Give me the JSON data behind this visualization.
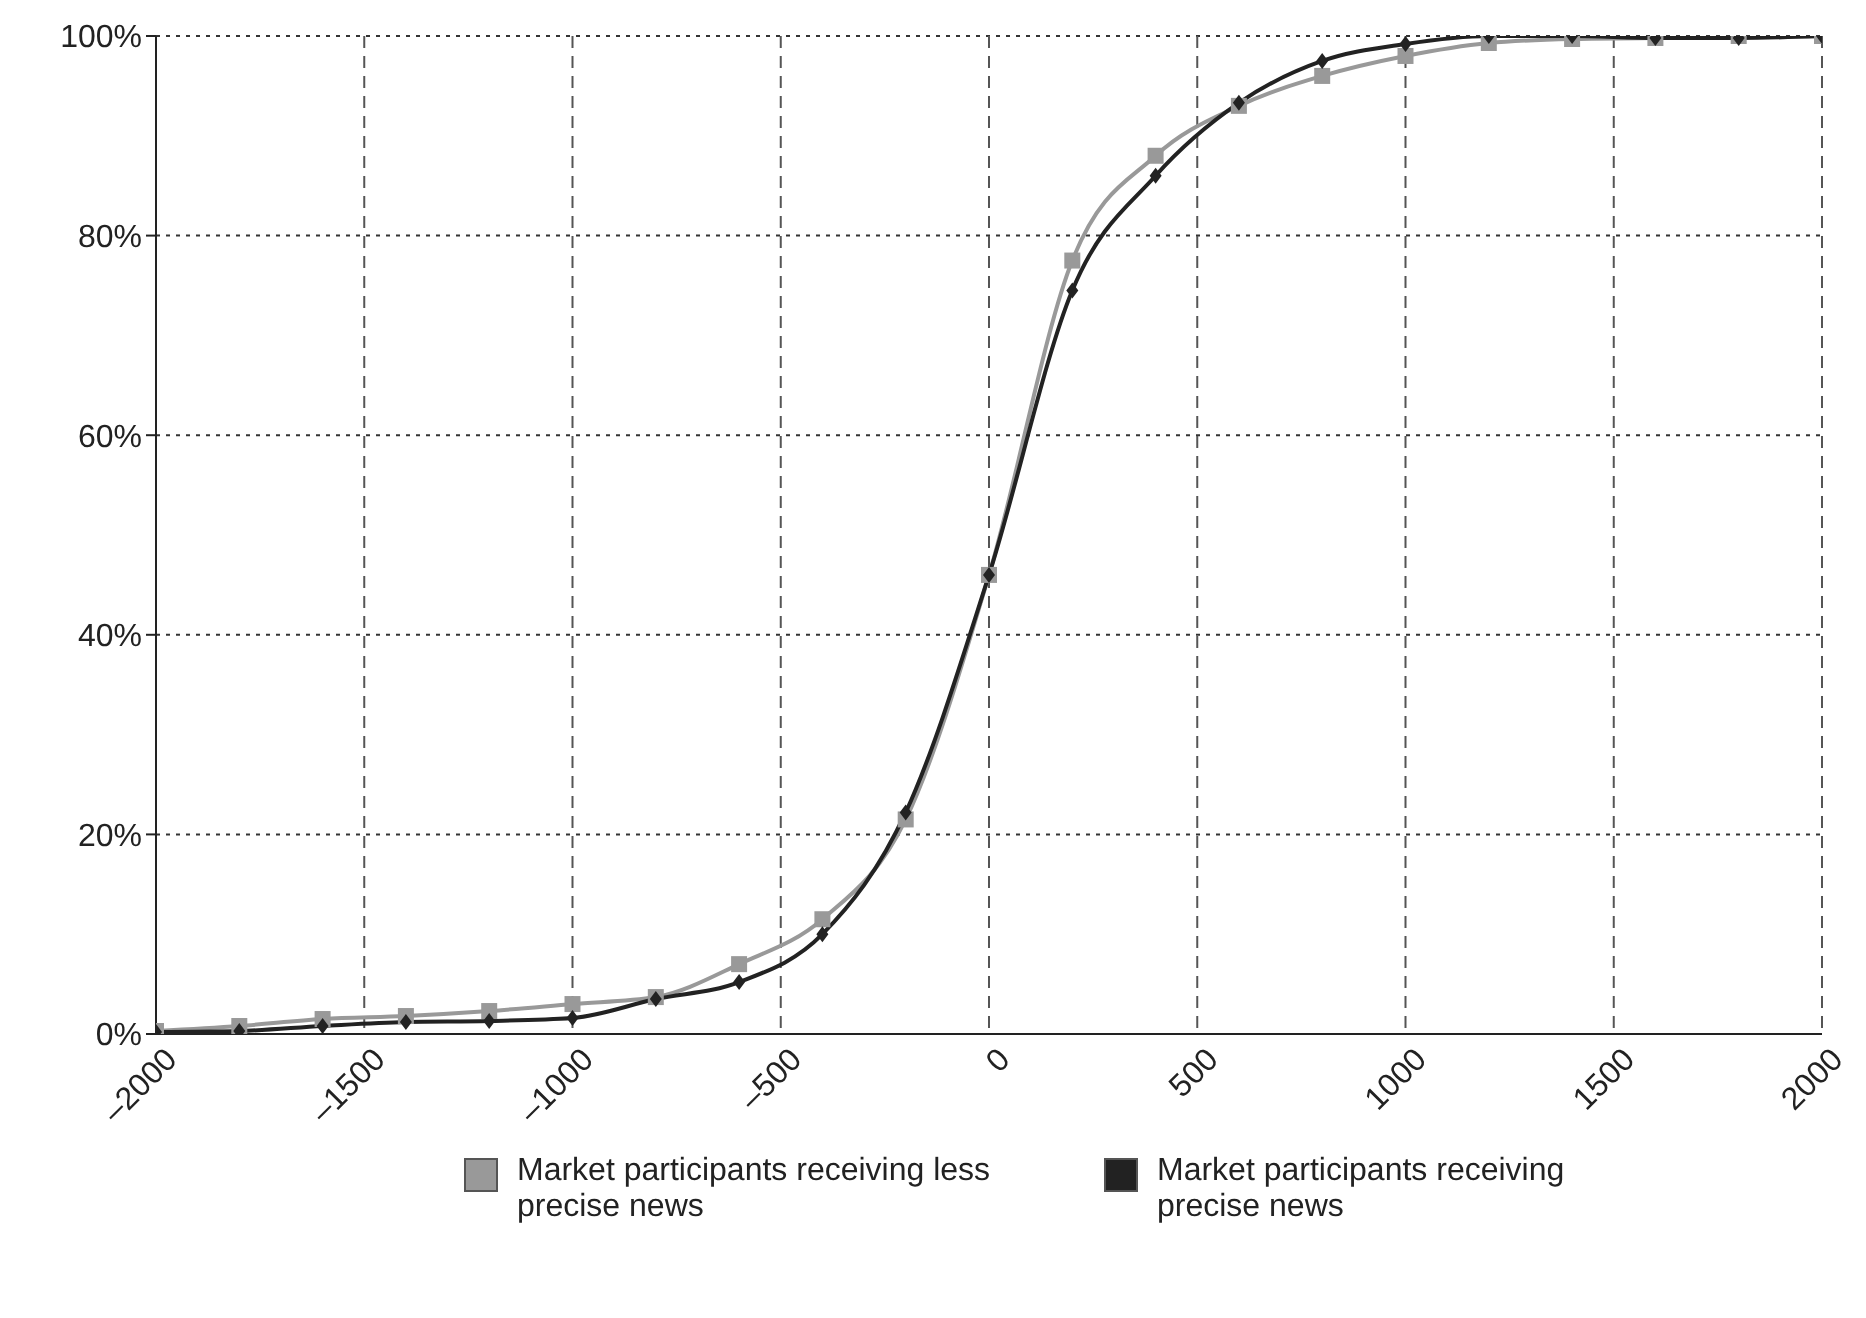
{
  "chart_data": {
    "type": "line",
    "x": [
      -2000,
      -1800,
      -1600,
      -1400,
      -1200,
      -1000,
      -800,
      -600,
      -400,
      -200,
      0,
      200,
      400,
      600,
      800,
      1000,
      1200,
      1400,
      1600,
      1800,
      2000
    ],
    "series": [
      {
        "name": "Market participants receiving less precise news",
        "color": "#999999",
        "marker": "square",
        "values": [
          0.3,
          0.8,
          1.5,
          1.8,
          2.3,
          3,
          3.7,
          7,
          11.5,
          21.5,
          46,
          77.5,
          88,
          93,
          96,
          98,
          99.3,
          99.7,
          99.8,
          100,
          100
        ]
      },
      {
        "name": "Market participants receiving precise news",
        "color": "#222222",
        "marker": "diamond",
        "values": [
          0.2,
          0.3,
          0.8,
          1.2,
          1.3,
          1.6,
          3.5,
          5.2,
          10,
          22.2,
          46,
          74.5,
          86,
          93.3,
          97.5,
          99.2,
          100,
          100,
          99.8,
          99.8,
          100
        ]
      }
    ],
    "xlim": [
      -2000,
      2000
    ],
    "xticks": [
      {
        "value": -2000,
        "label": "–2000"
      },
      {
        "value": -1500,
        "label": "–1500"
      },
      {
        "value": -1000,
        "label": "–1000"
      },
      {
        "value": -500,
        "label": "–500"
      },
      0,
      500,
      1000,
      1500,
      2000
    ],
    "ylim": [
      0,
      100
    ],
    "yticks": [
      {
        "value": 0,
        "label": "0%"
      },
      {
        "value": 20,
        "label": "20%"
      },
      {
        "value": 40,
        "label": "40%"
      },
      {
        "value": 60,
        "label": "60%"
      },
      {
        "value": 80,
        "label": "80%"
      },
      {
        "value": 100,
        "label": "100%"
      }
    ],
    "grid": true,
    "legend": "bottom",
    "line_style": "solid"
  }
}
